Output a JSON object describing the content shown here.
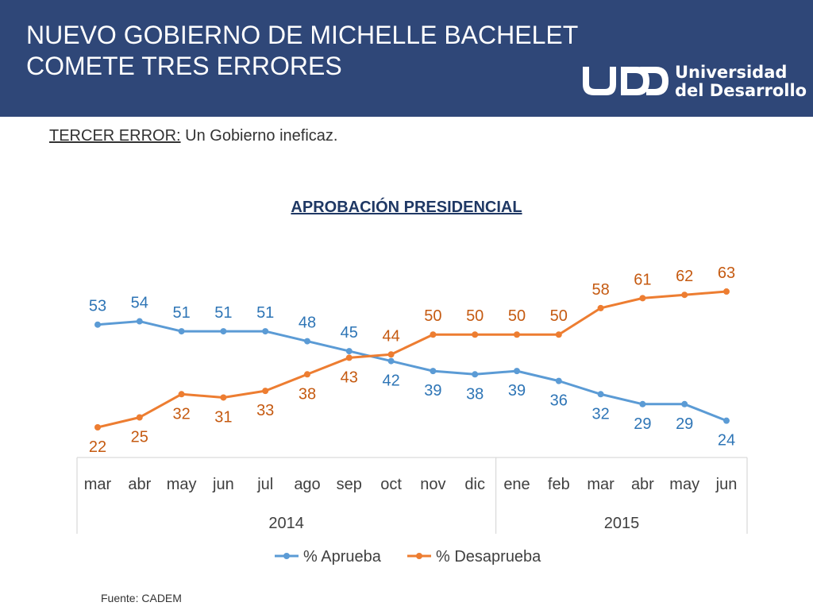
{
  "header": {
    "title_line1": "NUEVO GOBIERNO DE MICHELLE BACHELET",
    "title_line2": "COMETE TRES ERRORES",
    "logo_line1": "Universidad",
    "logo_line2": "del Desarrollo",
    "background": "#2f4778"
  },
  "subtitle": {
    "label": "TERCER ERROR:",
    "text": " Un Gobierno ineficaz."
  },
  "source": "Fuente: CADEM",
  "chart_data": {
    "type": "line",
    "title": "APROBACIÓN PRESIDENCIAL",
    "categories": [
      "mar",
      "abr",
      "may",
      "jun",
      "jul",
      "ago",
      "sep",
      "oct",
      "nov",
      "dic",
      "ene",
      "feb",
      "mar",
      "abr",
      "may",
      "jun"
    ],
    "groups": [
      {
        "label": "2014",
        "count": 10
      },
      {
        "label": "2015",
        "count": 6
      }
    ],
    "series": [
      {
        "name": "% Aprueba",
        "color": "#5b9bd5",
        "label_color": "#2e75b6",
        "values": [
          53,
          54,
          51,
          51,
          51,
          48,
          45,
          42,
          39,
          38,
          39,
          36,
          32,
          29,
          29,
          24
        ]
      },
      {
        "name": "% Desaprueba",
        "color": "#ed7d31",
        "label_color": "#c55a11",
        "values": [
          22,
          25,
          32,
          31,
          33,
          38,
          43,
          44,
          50,
          50,
          50,
          50,
          58,
          61,
          62,
          63
        ]
      }
    ],
    "legend": "bottom",
    "grid": false
  }
}
